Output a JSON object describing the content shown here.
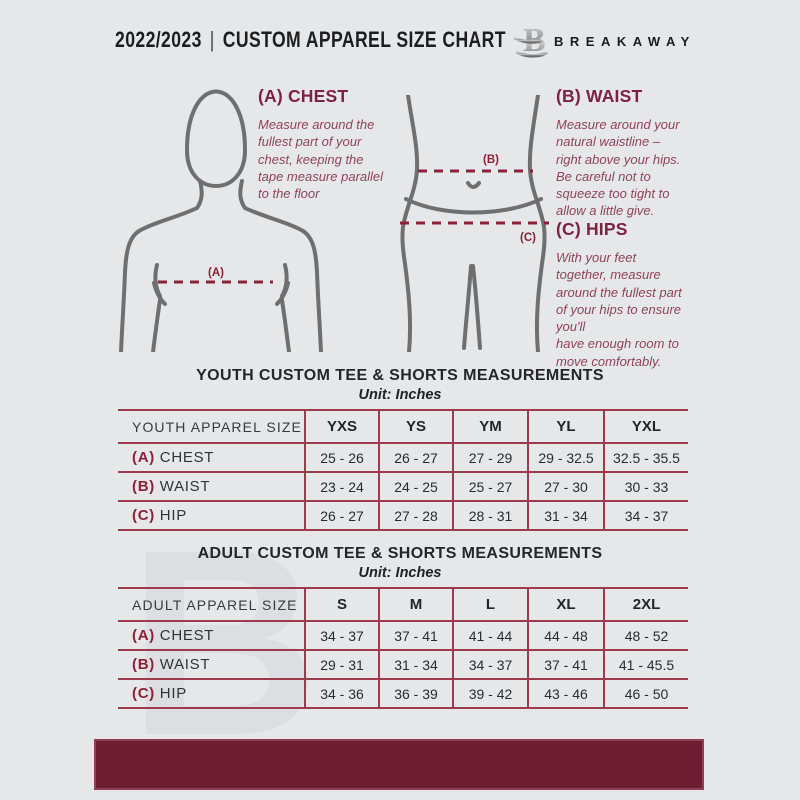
{
  "colors": {
    "page_background": "#e6e7e9",
    "accent_heading": "#7c2241",
    "accent_dash": "#8b2138",
    "guide_text": "#8d4459",
    "table_line": "#9c3a4e",
    "footer_bar": "#6e1c31",
    "figure_stroke": "#6f6f6f",
    "header_text": "#1d1d1d"
  },
  "header": {
    "year": "2022/2023",
    "separator": "|",
    "title": "CUSTOM APPAREL SIZE CHART",
    "brand": "BREAKAWAY",
    "logo_letter": "B"
  },
  "guides": {
    "chest": {
      "heading": "(A) CHEST",
      "body": "Measure around the\nfullest part of your\nchest, keeping the\ntape measure parallel\nto the floor"
    },
    "waist": {
      "heading": "(B) WAIST",
      "body": "Measure around your\nnatural waistline –\nright above your hips.\nBe careful not to\nsqueeze too tight to\nallow a little give."
    },
    "hips": {
      "heading": "(C) HIPS",
      "body": "With your feet\ntogether, measure\naround the fullest part\nof your hips to ensure\nyou'll\nhave enough room to\nmove comfortably."
    }
  },
  "figure_labels": {
    "chest": "(A)",
    "waist": "(B)",
    "hips": "(C)"
  },
  "youth_table": {
    "title": "YOUTH CUSTOM TEE & SHORTS MEASUREMENTS",
    "unit": "Unit: Inches",
    "header": [
      "YOUTH APPAREL SIZE",
      "YXS",
      "YS",
      "YM",
      "YL",
      "YXL"
    ],
    "rows": [
      {
        "prefix": "(A)",
        "label": "CHEST",
        "values": [
          "25 - 26",
          "26 - 27",
          "27 - 29",
          "29 - 32.5",
          "32.5 - 35.5"
        ]
      },
      {
        "prefix": "(B)",
        "label": "WAIST",
        "values": [
          "23 - 24",
          "24 - 25",
          "25 - 27",
          "27 - 30",
          "30 - 33"
        ]
      },
      {
        "prefix": "(C)",
        "label": "HIP",
        "values": [
          "26 - 27",
          "27 - 28",
          "28 - 31",
          "31 - 34",
          "34 - 37"
        ]
      }
    ]
  },
  "adult_table": {
    "title": "ADULT CUSTOM TEE & SHORTS MEASUREMENTS",
    "unit": "Unit: Inches",
    "header": [
      "ADULT APPAREL SIZE",
      "S",
      "M",
      "L",
      "XL",
      "2XL"
    ],
    "rows": [
      {
        "prefix": "(A)",
        "label": "CHEST",
        "values": [
          "34 - 37",
          "37 - 41",
          "41 - 44",
          "44 - 48",
          "48 - 52"
        ]
      },
      {
        "prefix": "(B)",
        "label": "WAIST",
        "values": [
          "29 - 31",
          "31 - 34",
          "34 - 37",
          "37 - 41",
          "41 - 45.5"
        ]
      },
      {
        "prefix": "(C)",
        "label": "HIP",
        "values": [
          "34 - 36",
          "36 - 39",
          "39 - 42",
          "43 - 46",
          "46 - 50"
        ]
      }
    ]
  },
  "watermark_letter": "B"
}
